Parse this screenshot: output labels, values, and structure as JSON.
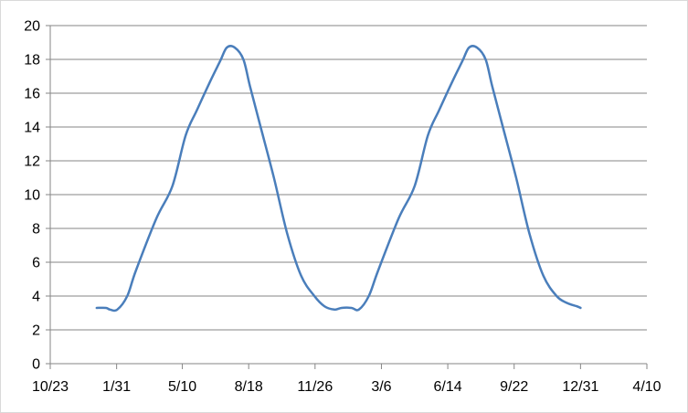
{
  "chart_data": {
    "type": "line",
    "title": "",
    "xlabel": "",
    "ylabel": "",
    "x_is_date": true,
    "xlim": [
      "2012-10-23",
      "2015-04-10"
    ],
    "ylim": [
      0,
      20
    ],
    "grid": true,
    "legend": "none",
    "line_color": "#4a7ebb",
    "x_ticks": [
      {
        "value": "2012-10-23",
        "label": "10/23"
      },
      {
        "value": "2013-01-31",
        "label": "1/31"
      },
      {
        "value": "2013-05-10",
        "label": "5/10"
      },
      {
        "value": "2013-08-18",
        "label": "8/18"
      },
      {
        "value": "2013-11-26",
        "label": "11/26"
      },
      {
        "value": "2014-03-06",
        "label": "3/6"
      },
      {
        "value": "2014-06-14",
        "label": "6/14"
      },
      {
        "value": "2014-09-22",
        "label": "9/22"
      },
      {
        "value": "2014-12-31",
        "label": "12/31"
      },
      {
        "value": "2015-04-10",
        "label": "4/10"
      }
    ],
    "y_ticks": [
      0,
      2,
      4,
      6,
      8,
      10,
      12,
      14,
      16,
      18,
      20
    ],
    "series": [
      {
        "x": [
          "2013-01-01",
          "2013-01-15",
          "2013-01-21",
          "2013-02-01",
          "2013-02-16",
          "2013-03-01",
          "2013-04-01",
          "2013-04-25",
          "2013-05-15",
          "2013-06-01",
          "2013-06-21",
          "2013-07-06",
          "2013-07-16",
          "2013-07-28",
          "2013-08-10",
          "2013-08-20",
          "2013-09-05",
          "2013-09-25",
          "2013-10-15",
          "2013-11-05",
          "2013-11-25",
          "2013-12-10",
          "2013-12-25",
          "2014-01-05",
          "2014-01-20",
          "2014-01-31",
          "2014-02-15",
          "2014-03-01",
          "2014-04-01",
          "2014-04-25",
          "2014-05-15",
          "2014-06-01",
          "2014-06-21",
          "2014-07-06",
          "2014-07-16",
          "2014-07-28",
          "2014-08-10",
          "2014-08-20",
          "2014-09-05",
          "2014-09-25",
          "2014-10-15",
          "2014-11-05",
          "2014-11-25",
          "2014-12-10",
          "2014-12-25",
          "2014-12-31"
        ],
        "y": [
          3.3,
          3.3,
          3.2,
          3.2,
          4.0,
          5.5,
          8.6,
          10.5,
          13.5,
          15.0,
          16.7,
          17.9,
          18.7,
          18.7,
          18.0,
          16.4,
          14.0,
          11.0,
          7.7,
          5.2,
          4.0,
          3.4,
          3.2,
          3.3,
          3.3,
          3.2,
          4.0,
          5.5,
          8.6,
          10.5,
          13.5,
          15.0,
          16.7,
          17.9,
          18.7,
          18.7,
          18.0,
          16.4,
          14.0,
          11.0,
          7.7,
          5.2,
          4.0,
          3.6,
          3.4,
          3.3
        ]
      }
    ]
  }
}
